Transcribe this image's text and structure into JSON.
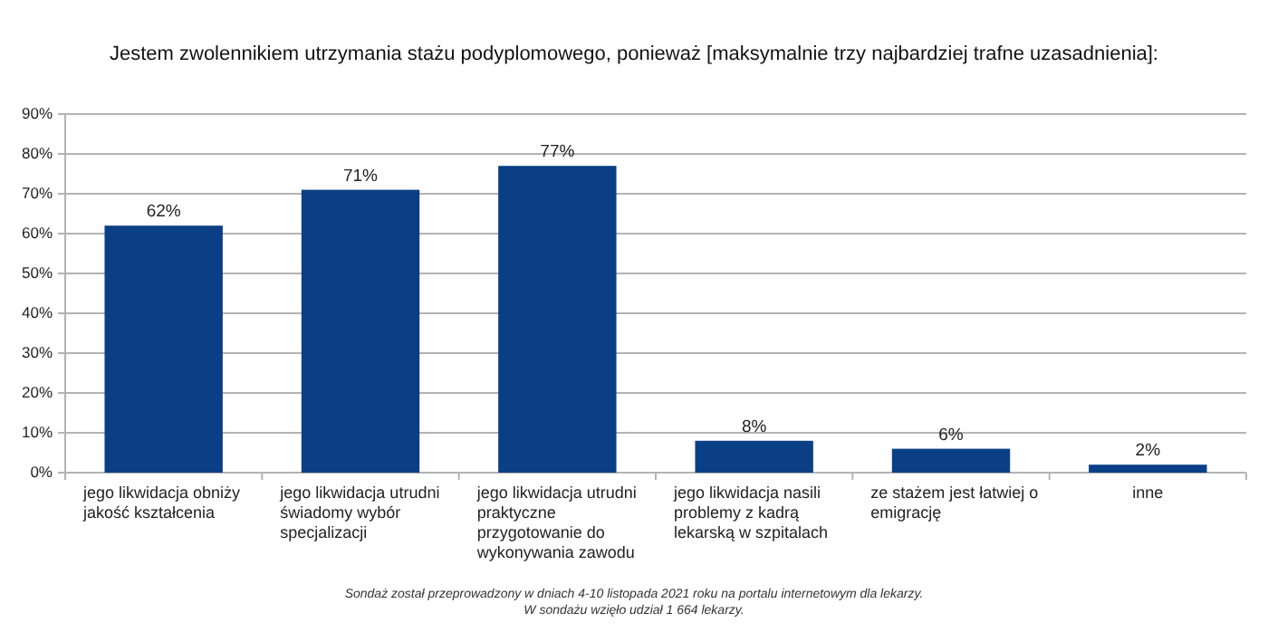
{
  "chart_data": {
    "type": "bar",
    "title": "Jestem zwolennikiem utrzymania stażu podyplomowego, ponieważ [maksymalnie trzy najbardziej trafne uzasadnienia]:",
    "categories": [
      "jego likwidacja obniży jakość kształcenia",
      "jego likwidacja utrudni świadomy wybór specjalizacji",
      "jego likwidacja utrudni praktyczne przygotowanie do wykonywania zawodu",
      "jego likwidacja nasili problemy z kadrą lekarską w szpitalach",
      "ze stażem jest łatwiej o emigrację",
      "inne"
    ],
    "values": [
      62,
      71,
      77,
      8,
      6,
      2
    ],
    "value_labels": [
      "62%",
      "71%",
      "77%",
      "8%",
      "6%",
      "2%"
    ],
    "color": "#0b3f85",
    "ylim": [
      0,
      90
    ],
    "yticks": [
      {
        "value": 0,
        "label": "0%"
      },
      {
        "value": 10,
        "label": "10%"
      },
      {
        "value": 20,
        "label": "20%"
      },
      {
        "value": 30,
        "label": "30%"
      },
      {
        "value": 40,
        "label": "40%"
      },
      {
        "value": 50,
        "label": "50%"
      },
      {
        "value": 60,
        "label": "60%"
      },
      {
        "value": 70,
        "label": "70%"
      },
      {
        "value": 80,
        "label": "80%"
      },
      {
        "value": 90,
        "label": "90%"
      }
    ],
    "grid": "y",
    "annotations": [
      "Sondaż został przeprowadzony w dniach 4-10 listopada 2021 roku na portalu internetowym dla lekarzy.",
      "W sondażu wzięło udział 1 664 lekarzy."
    ]
  }
}
